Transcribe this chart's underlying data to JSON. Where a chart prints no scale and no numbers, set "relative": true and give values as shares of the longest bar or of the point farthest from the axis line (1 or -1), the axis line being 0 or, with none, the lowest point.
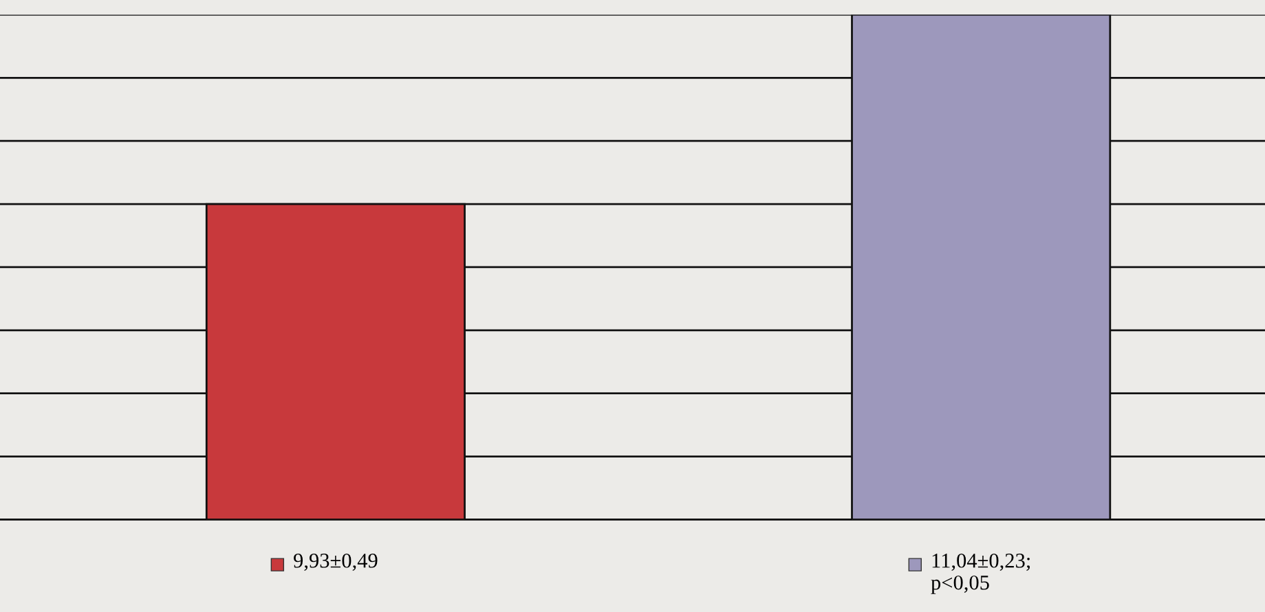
{
  "chart_data": {
    "type": "bar",
    "relative": true,
    "categories": [
      "9,93±0,49",
      "11,04±0,23;\np<0,05"
    ],
    "values": [
      0.625,
      1
    ],
    "colors": [
      "#c8393c",
      "#9d98bc"
    ],
    "grid": "y"
  }
}
